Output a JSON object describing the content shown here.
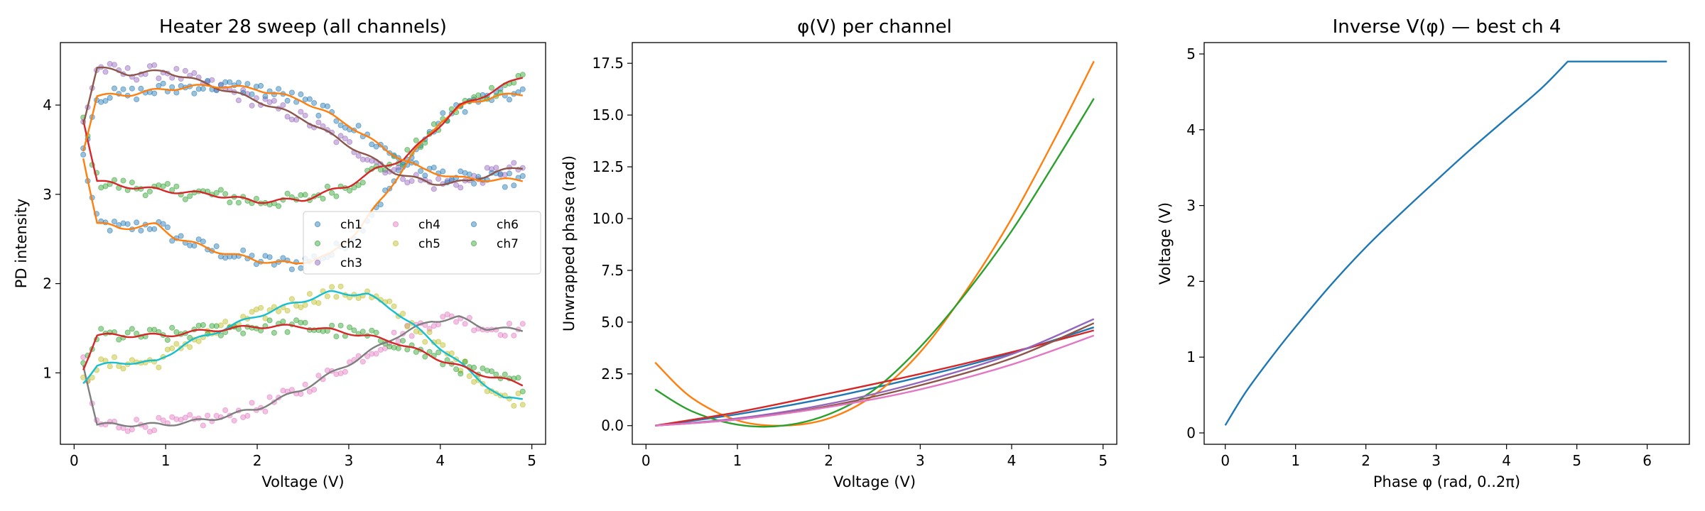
{
  "chart_data": [
    {
      "type": "scatter",
      "title": "Heater 28 sweep (all channels)",
      "xlabel": "Voltage (V)",
      "ylabel": "PD intensity",
      "xlim": [
        -0.15,
        5.15
      ],
      "ylim": [
        0.2,
        4.7
      ],
      "xticks": [
        0,
        1,
        2,
        3,
        4,
        5
      ],
      "yticks": [
        1,
        2,
        3,
        4
      ],
      "grid": false,
      "legend": "center-right",
      "series": [
        {
          "name": "ch1",
          "color": "#1f77b4",
          "fit_color": "#ff7f0e",
          "curve": [
            [
              0.1,
              3.42
            ],
            [
              0.25,
              2.68
            ],
            [
              0.5,
              2.62
            ],
            [
              0.9,
              2.66
            ],
            [
              1.1,
              2.52
            ],
            [
              1.5,
              2.38
            ],
            [
              2.0,
              2.26
            ],
            [
              2.4,
              2.22
            ],
            [
              2.8,
              2.32
            ],
            [
              3.1,
              2.6
            ],
            [
              3.4,
              3.0
            ],
            [
              3.7,
              3.45
            ],
            [
              4.0,
              3.82
            ],
            [
              4.3,
              4.02
            ],
            [
              4.6,
              4.1
            ],
            [
              4.9,
              4.12
            ]
          ]
        },
        {
          "name": "ch2",
          "color": "#2ca02c",
          "fit_color": "#d62728",
          "curve": [
            [
              0.1,
              3.85
            ],
            [
              0.25,
              3.15
            ],
            [
              0.5,
              3.1
            ],
            [
              1.0,
              3.04
            ],
            [
              1.5,
              3.0
            ],
            [
              2.0,
              2.92
            ],
            [
              2.5,
              2.94
            ],
            [
              3.0,
              3.1
            ],
            [
              3.3,
              3.28
            ],
            [
              3.6,
              3.4
            ],
            [
              3.9,
              3.68
            ],
            [
              4.2,
              3.98
            ],
            [
              4.5,
              4.12
            ],
            [
              4.9,
              4.32
            ]
          ]
        },
        {
          "name": "ch3",
          "color": "#9467bd",
          "fit_color": "#8c564b",
          "curve": [
            [
              0.1,
              3.8
            ],
            [
              0.25,
              4.42
            ],
            [
              0.6,
              4.35
            ],
            [
              1.0,
              4.38
            ],
            [
              1.5,
              4.22
            ],
            [
              2.0,
              4.05
            ],
            [
              2.5,
              3.85
            ],
            [
              3.0,
              3.55
            ],
            [
              3.5,
              3.25
            ],
            [
              3.9,
              3.12
            ],
            [
              4.3,
              3.14
            ],
            [
              4.6,
              3.25
            ],
            [
              4.9,
              3.3
            ]
          ]
        },
        {
          "name": "ch4",
          "color": "#e377c2",
          "fit_color": "#7f7f7f",
          "curve": [
            [
              0.1,
              1.1
            ],
            [
              0.25,
              0.42
            ],
            [
              0.6,
              0.42
            ],
            [
              1.0,
              0.42
            ],
            [
              1.5,
              0.48
            ],
            [
              2.0,
              0.6
            ],
            [
              2.5,
              0.82
            ],
            [
              3.0,
              1.1
            ],
            [
              3.5,
              1.4
            ],
            [
              3.9,
              1.58
            ],
            [
              4.2,
              1.62
            ],
            [
              4.5,
              1.5
            ],
            [
              4.9,
              1.48
            ]
          ]
        },
        {
          "name": "ch5",
          "color": "#bcbd22",
          "fit_color": "#17becf",
          "curve": [
            [
              0.1,
              0.9
            ],
            [
              0.25,
              1.08
            ],
            [
              0.6,
              1.12
            ],
            [
              0.9,
              1.12
            ],
            [
              1.2,
              1.32
            ],
            [
              1.6,
              1.48
            ],
            [
              2.0,
              1.64
            ],
            [
              2.4,
              1.78
            ],
            [
              2.8,
              1.9
            ],
            [
              3.2,
              1.88
            ],
            [
              3.5,
              1.7
            ],
            [
              3.8,
              1.45
            ],
            [
              4.1,
              1.2
            ],
            [
              4.4,
              0.95
            ],
            [
              4.7,
              0.7
            ],
            [
              4.9,
              0.72
            ]
          ]
        },
        {
          "name": "ch6",
          "color": "#1f77b4",
          "fit_color": "#ff7f0e",
          "curve": [
            [
              0.1,
              3.5
            ],
            [
              0.25,
              4.1
            ],
            [
              0.6,
              4.12
            ],
            [
              1.0,
              4.18
            ],
            [
              1.5,
              4.22
            ],
            [
              2.0,
              4.18
            ],
            [
              2.5,
              4.05
            ],
            [
              3.0,
              3.78
            ],
            [
              3.4,
              3.5
            ],
            [
              3.8,
              3.28
            ],
            [
              4.2,
              3.18
            ],
            [
              4.6,
              3.16
            ],
            [
              4.9,
              3.16
            ]
          ]
        },
        {
          "name": "ch7",
          "color": "#2ca02c",
          "fit_color": "#d62728",
          "curve": [
            [
              0.1,
              1.05
            ],
            [
              0.25,
              1.42
            ],
            [
              0.6,
              1.42
            ],
            [
              1.0,
              1.42
            ],
            [
              1.5,
              1.48
            ],
            [
              2.0,
              1.52
            ],
            [
              2.5,
              1.52
            ],
            [
              3.0,
              1.45
            ],
            [
              3.5,
              1.35
            ],
            [
              4.0,
              1.15
            ],
            [
              4.4,
              1.0
            ],
            [
              4.9,
              0.87
            ]
          ]
        }
      ]
    },
    {
      "type": "line",
      "title": "φ(V) per channel",
      "xlabel": "Voltage (V)",
      "ylabel": "Unwrapped phase (rad)",
      "xlim": [
        -0.15,
        5.15
      ],
      "ylim": [
        -0.9,
        18.5
      ],
      "xticks": [
        0,
        1,
        2,
        3,
        4,
        5
      ],
      "yticks": [
        "0.0",
        "2.5",
        "5.0",
        "7.5",
        "10.0",
        "12.5",
        "15.0",
        "17.5"
      ],
      "grid": false,
      "series": [
        {
          "color": "#1f77b4",
          "x": [
            0.1,
            1,
            2,
            3,
            4,
            4.9
          ],
          "y": [
            0,
            0.55,
            1.35,
            2.35,
            3.5,
            4.75
          ]
        },
        {
          "color": "#ff7f0e",
          "x": [
            0.1,
            0.5,
            1,
            1.5,
            2,
            2.5,
            3,
            3.5,
            4,
            4.5,
            4.9
          ],
          "y": [
            3.05,
            1.35,
            0.25,
            0.0,
            0.35,
            1.5,
            3.55,
            6.5,
            10.0,
            14.1,
            17.6
          ]
        },
        {
          "color": "#2ca02c",
          "x": [
            0.1,
            0.5,
            1,
            1.5,
            2,
            2.5,
            3,
            3.5,
            4,
            4.5,
            4.9
          ],
          "y": [
            1.75,
            0.7,
            0.05,
            0.0,
            0.55,
            1.75,
            3.8,
            6.4,
            9.4,
            12.9,
            15.8
          ]
        },
        {
          "color": "#d62728",
          "x": [
            0.1,
            1,
            2,
            3,
            4,
            4.9
          ],
          "y": [
            0,
            0.65,
            1.55,
            2.5,
            3.55,
            4.6
          ]
        },
        {
          "color": "#9467bd",
          "x": [
            0.1,
            1,
            2,
            3,
            4,
            4.9
          ],
          "y": [
            0,
            0.35,
            1.05,
            2.1,
            3.45,
            5.15
          ]
        },
        {
          "color": "#8c564b",
          "x": [
            0.1,
            1,
            2,
            3,
            4,
            4.9
          ],
          "y": [
            0,
            0.3,
            0.95,
            1.95,
            3.25,
            4.95
          ]
        },
        {
          "color": "#e377c2",
          "x": [
            0.1,
            1,
            2,
            3,
            4,
            4.9
          ],
          "y": [
            0,
            0.3,
            0.9,
            1.75,
            2.95,
            4.35
          ]
        }
      ]
    },
    {
      "type": "line",
      "title": "Inverse V(φ) — best ch 4",
      "xlabel": "Phase φ (rad, 0..2π)",
      "ylabel": "Voltage (V)",
      "xlim": [
        -0.3,
        6.6
      ],
      "ylim": [
        -0.15,
        5.15
      ],
      "xticks": [
        0,
        1,
        2,
        3,
        4,
        5,
        6
      ],
      "yticks": [
        0,
        1,
        2,
        3,
        4,
        5
      ],
      "grid": false,
      "series": [
        {
          "color": "#1f77b4",
          "x": [
            0,
            0.3,
            0.7,
            1.0,
            1.5,
            2.0,
            2.5,
            3.0,
            3.5,
            4.0,
            4.5,
            4.87,
            5.2,
            6.28
          ],
          "y": [
            0.1,
            0.55,
            1.05,
            1.4,
            1.95,
            2.45,
            2.9,
            3.33,
            3.75,
            4.15,
            4.55,
            4.9,
            4.9,
            4.9
          ]
        }
      ]
    }
  ]
}
